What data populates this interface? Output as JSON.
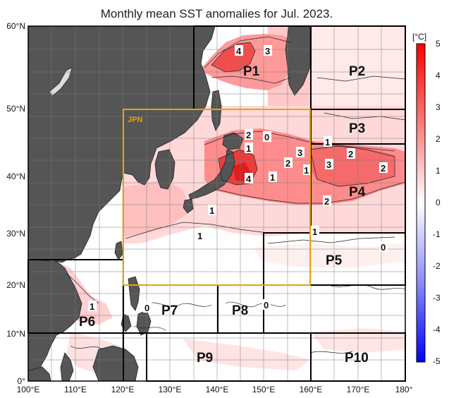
{
  "title": "Monthly mean SST anomalies for Jul. 2023.",
  "colorbar": {
    "unit": "[°C]",
    "ticks": [
      "5",
      "4",
      "3",
      "2",
      "1",
      "0",
      "-1",
      "-2",
      "-3",
      "-4",
      "-5"
    ],
    "max_color": "#ff0000",
    "min_color": "#0000ff"
  },
  "axes": {
    "lat_labels": [
      "60°N",
      "50°N",
      "40°N",
      "30°N",
      "20°N",
      "10°N",
      "0°"
    ],
    "lon_labels": [
      "100°E",
      "110°E",
      "120°E",
      "130°E",
      "140°E",
      "150°E",
      "160°E",
      "170°E",
      "180°"
    ]
  },
  "regions": {
    "jpn": "JPN",
    "p1": "P1",
    "p2": "P2",
    "p3": "P3",
    "p4": "P4",
    "p5": "P5",
    "p6": "P6",
    "p7": "P7",
    "p8": "P8",
    "p9": "P9",
    "p10": "P10"
  },
  "contour_labels": {
    "c1": "4",
    "c2": "3",
    "c3": "2",
    "c4": "0",
    "c5": "1",
    "c6": "3",
    "c7": "2",
    "c8": "1",
    "c9": "4",
    "c10": "1",
    "c11": "3",
    "c12": "2",
    "c13": "2",
    "c14": "1",
    "c15": "2",
    "c16": "1",
    "c17": "1",
    "c18": "1",
    "c19": "0",
    "c20": "0",
    "c21": "0",
    "c22": "1"
  }
}
